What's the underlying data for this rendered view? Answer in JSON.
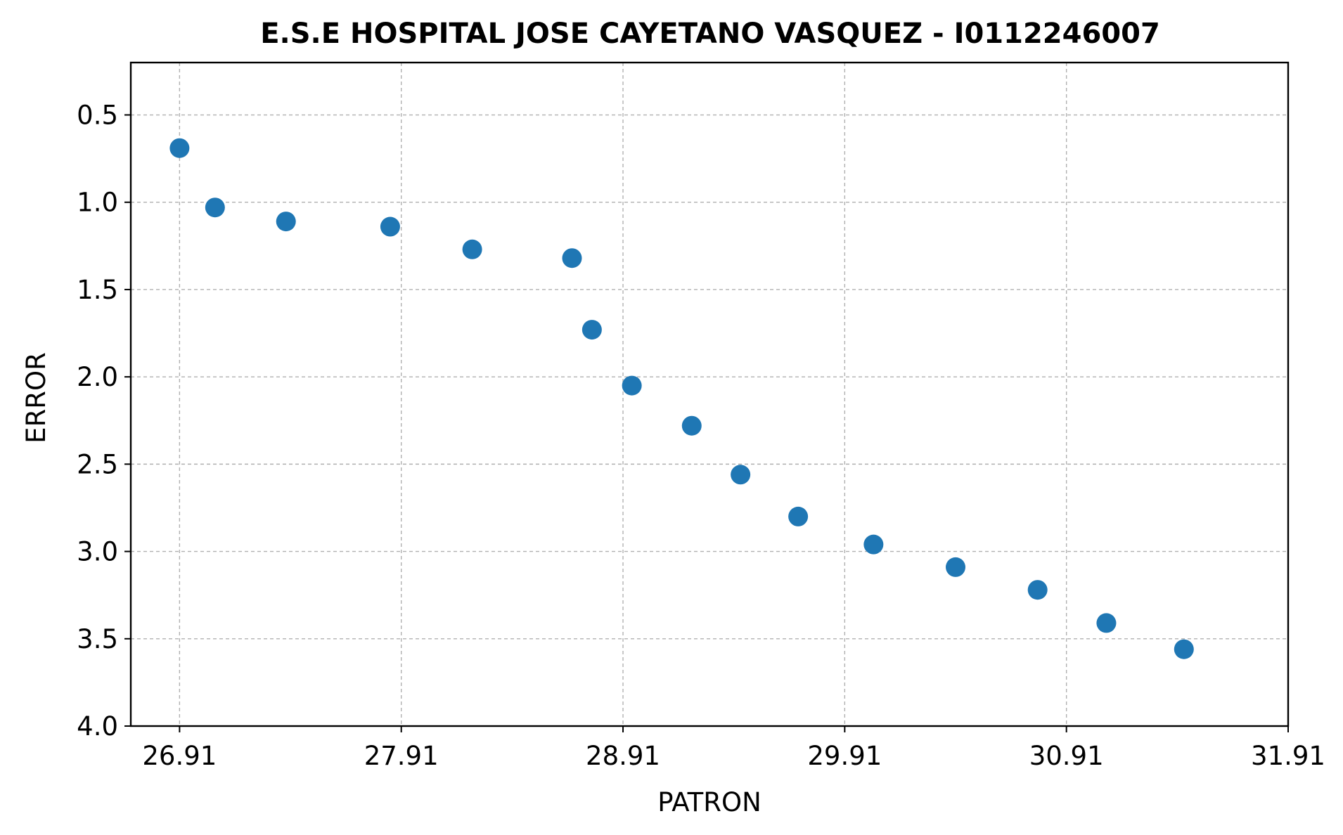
{
  "chart_data": {
    "type": "scatter",
    "title": "E.S.E HOSPITAL JOSE CAYETANO VASQUEZ - I0112246007",
    "xlabel": "PATRON",
    "ylabel": "ERROR",
    "xlim": [
      26.69,
      31.91
    ],
    "ylim": [
      4.0,
      0.2
    ],
    "y_inverted": true,
    "x_ticks": [
      26.91,
      27.91,
      28.91,
      29.91,
      30.91,
      31.91
    ],
    "x_tick_labels": [
      "26.91",
      "27.91",
      "28.91",
      "29.91",
      "30.91",
      "31.91"
    ],
    "y_ticks": [
      0.5,
      1.0,
      1.5,
      2.0,
      2.5,
      3.0,
      3.5,
      4.0
    ],
    "y_tick_labels": [
      "0.5",
      "1.0",
      "1.5",
      "2.0",
      "2.5",
      "3.0",
      "3.5",
      "4.0"
    ],
    "grid": true,
    "marker_color": "#1f77b4",
    "points": [
      {
        "x": 26.91,
        "y": 0.69
      },
      {
        "x": 27.07,
        "y": 1.03
      },
      {
        "x": 27.39,
        "y": 1.11
      },
      {
        "x": 27.86,
        "y": 1.14
      },
      {
        "x": 28.23,
        "y": 1.27
      },
      {
        "x": 28.68,
        "y": 1.32
      },
      {
        "x": 28.77,
        "y": 1.73
      },
      {
        "x": 28.95,
        "y": 2.05
      },
      {
        "x": 29.22,
        "y": 2.28
      },
      {
        "x": 29.44,
        "y": 2.56
      },
      {
        "x": 29.7,
        "y": 2.8
      },
      {
        "x": 30.04,
        "y": 2.96
      },
      {
        "x": 30.41,
        "y": 3.09
      },
      {
        "x": 30.78,
        "y": 3.22
      },
      {
        "x": 31.09,
        "y": 3.41
      },
      {
        "x": 31.44,
        "y": 3.56
      }
    ]
  }
}
